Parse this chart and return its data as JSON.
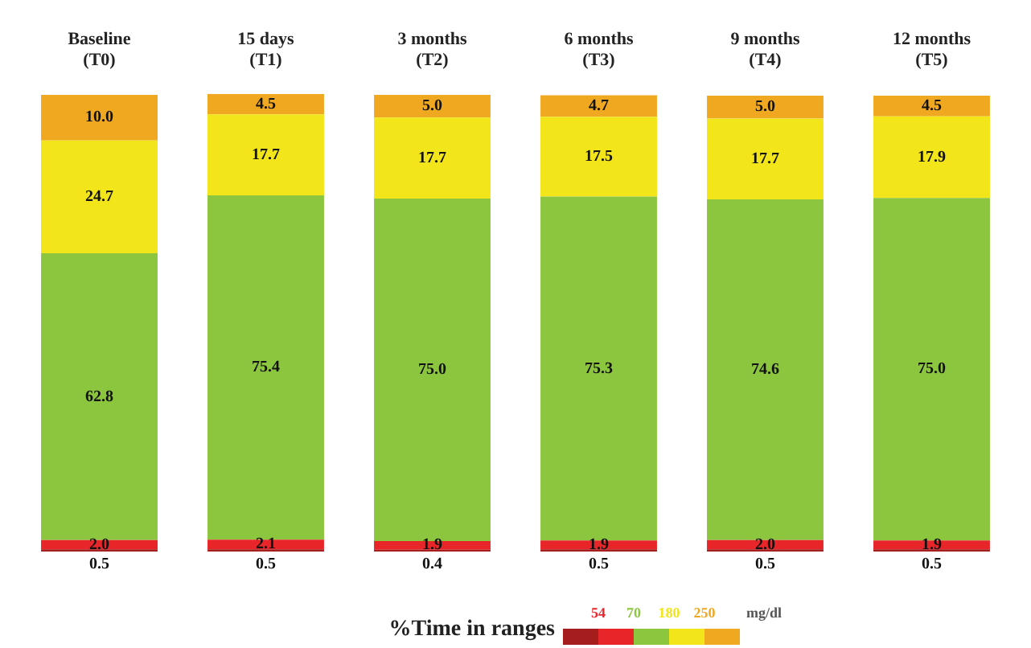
{
  "chart_data": {
    "type": "bar",
    "stacked": true,
    "grid": false,
    "tick_labels": "x",
    "legend_title": "%Time in ranges",
    "annotations": [
      "54",
      "70",
      "180",
      "250",
      "mg/dl"
    ],
    "categories": [
      "Baseline\n(T0)",
      "15 days\n(T1)",
      "3 months\n(T2)",
      "6 months\n(T3)",
      "9 months\n(T4)",
      "12 months\n(T5)"
    ],
    "series": [
      {
        "color": "#a51d1d",
        "values": [
          0.5,
          0.5,
          0.4,
          0.5,
          0.5,
          0.5
        ],
        "value_labels": [
          "0.5",
          "0.5",
          "0.4",
          "0.5",
          "0.5",
          "0.5"
        ]
      },
      {
        "color": "#e8262a",
        "values": [
          2.0,
          2.1,
          1.9,
          1.9,
          2.0,
          1.9
        ],
        "value_labels": [
          "2.0",
          "2.1",
          "1.9",
          "1.9",
          "2.0",
          "1.9"
        ]
      },
      {
        "color": "#8cc63f",
        "values": [
          62.8,
          75.4,
          75.0,
          75.3,
          74.6,
          75.0
        ],
        "value_labels": [
          "62.8",
          "75.4",
          "75.0",
          "75.3",
          "74.6",
          "75.0"
        ]
      },
      {
        "color": "#f2e51a",
        "values": [
          24.7,
          17.7,
          17.7,
          17.5,
          17.7,
          17.9
        ],
        "value_labels": [
          "24.7",
          "17.7",
          "17.7",
          "17.5",
          "17.7",
          "17.9"
        ]
      },
      {
        "color": "#f0a821",
        "values": [
          10.0,
          4.5,
          5.0,
          4.7,
          5.0,
          4.5
        ],
        "value_labels": [
          "10.0",
          "4.5",
          "5.0",
          "4.7",
          "5.0",
          "4.5"
        ]
      }
    ]
  }
}
